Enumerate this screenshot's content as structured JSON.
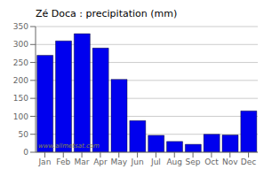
{
  "chart_data": {
    "type": "bar",
    "title": "Zé Doca : precipitation (mm)",
    "categories": [
      "Jan",
      "Feb",
      "Mar",
      "Apr",
      "May",
      "Jun",
      "Jul",
      "Aug",
      "Sep",
      "Oct",
      "Nov",
      "Dec"
    ],
    "values": [
      270,
      310,
      330,
      290,
      203,
      88,
      47,
      30,
      22,
      50,
      48,
      115
    ],
    "color": "#0000ee",
    "ylim": [
      0,
      350
    ],
    "yticks": [
      0,
      50,
      100,
      150,
      200,
      250,
      300,
      350
    ],
    "grid": true,
    "annotations": [
      "www.allmetsat.com"
    ]
  }
}
